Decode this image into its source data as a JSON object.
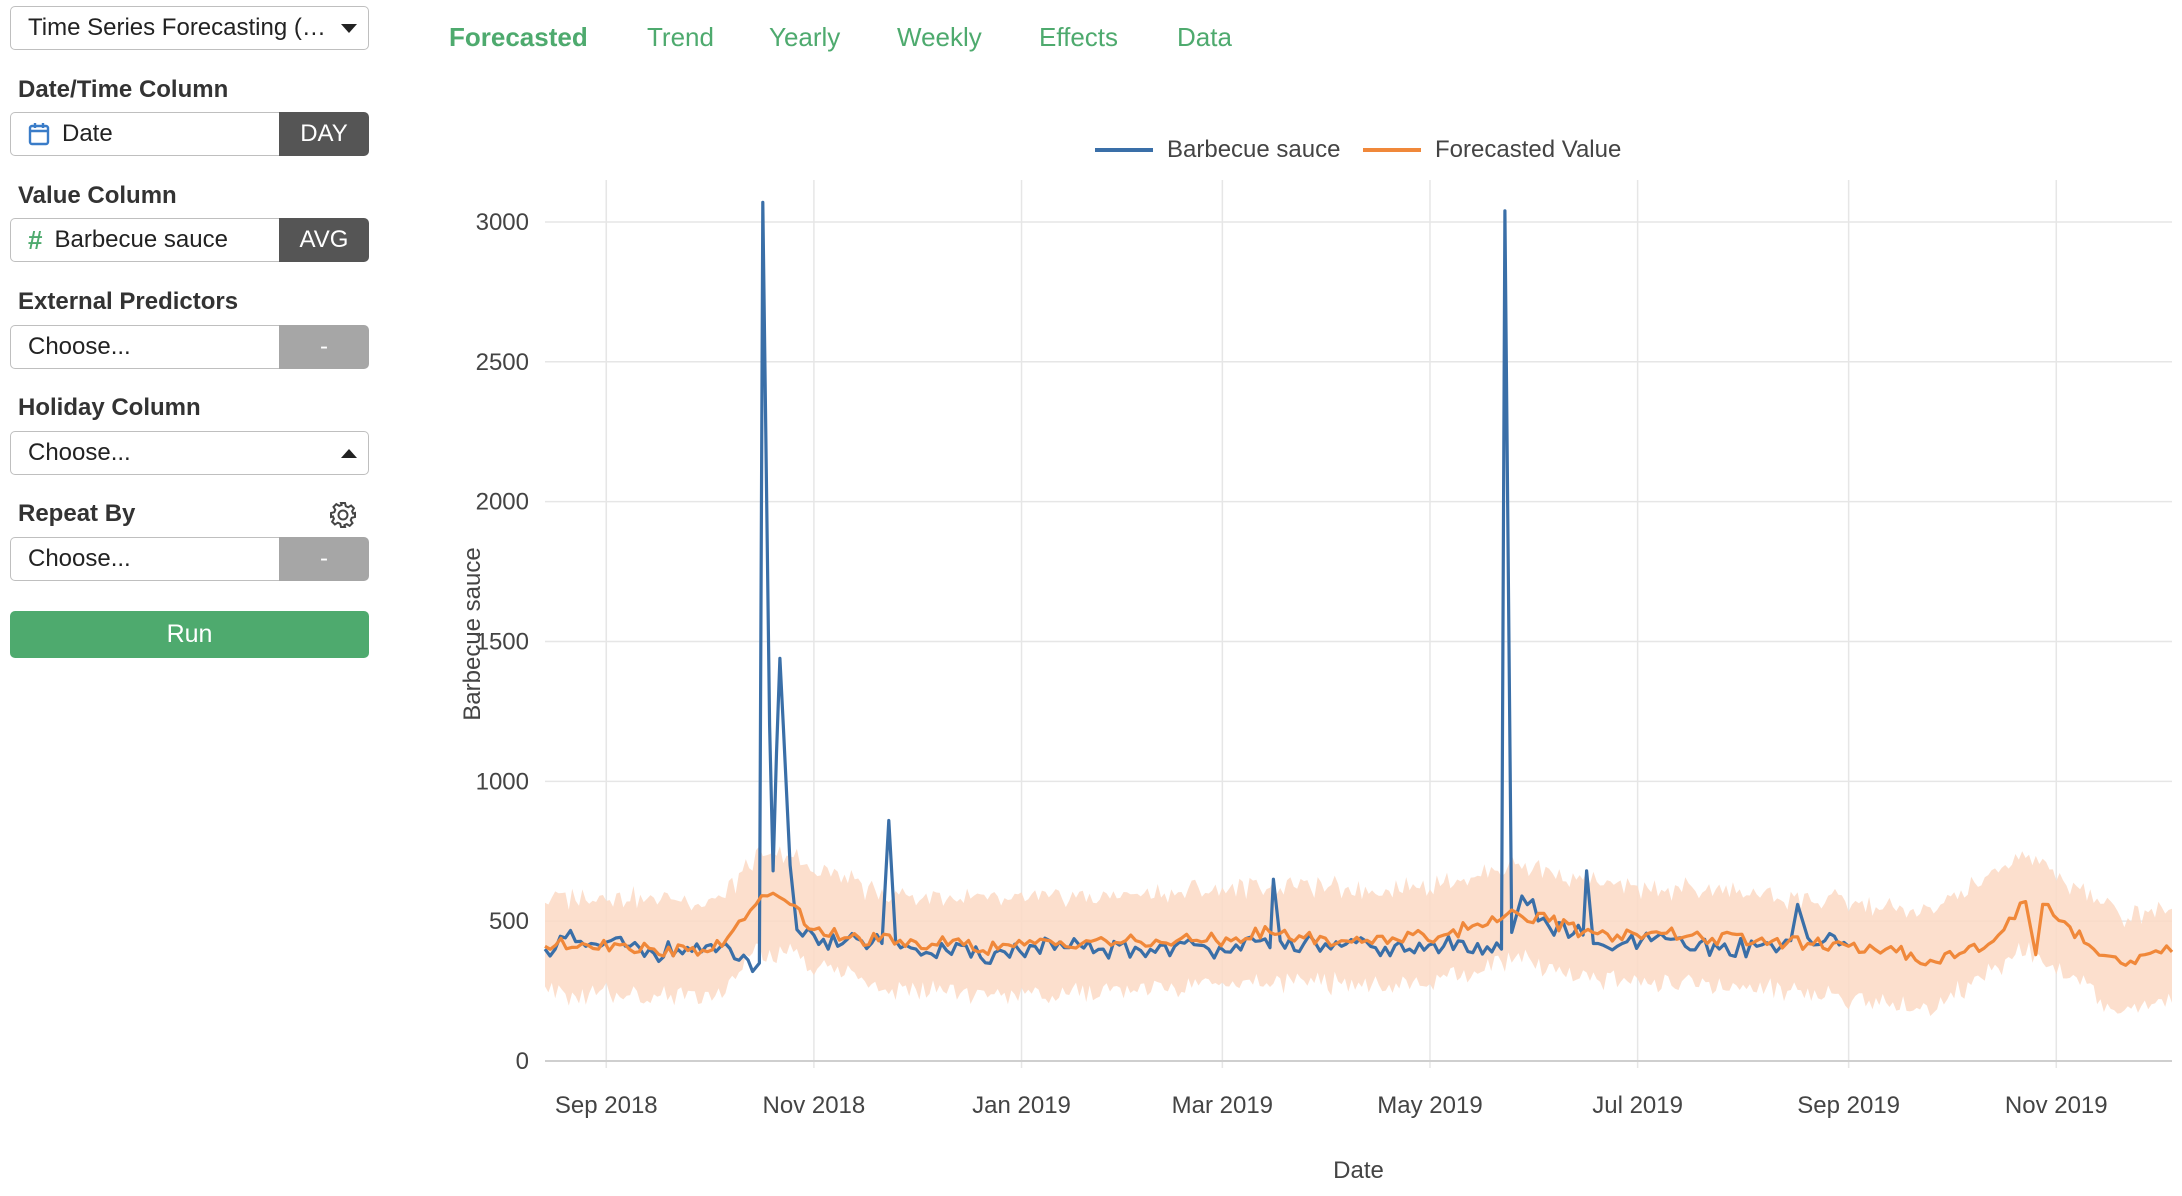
{
  "sidebar": {
    "model_select": "Time Series Forecasting (P…",
    "date_column": {
      "label": "Date/Time Column",
      "value": "Date",
      "unit": "DAY",
      "icon": "calendar-icon"
    },
    "value_column": {
      "label": "Value Column",
      "value": "Barbecue sauce",
      "agg": "AVG",
      "icon": "hash-icon"
    },
    "external_predictors": {
      "label": "External Predictors",
      "value": "Choose...",
      "btn": "-"
    },
    "holiday_column": {
      "label": "Holiday Column",
      "value": "Choose..."
    },
    "repeat_by": {
      "label": "Repeat By",
      "value": "Choose...",
      "btn": "-",
      "icon": "gear-icon"
    },
    "run_label": "Run"
  },
  "tabs": [
    {
      "label": "Forecasted",
      "active": true
    },
    {
      "label": "Trend"
    },
    {
      "label": "Yearly"
    },
    {
      "label": "Weekly"
    },
    {
      "label": "Effects"
    },
    {
      "label": "Data"
    }
  ],
  "colors": {
    "accent": "#4eaa6e",
    "actual": "#3a6fa8",
    "forecast": "#f0883a",
    "band": "#fbd9c4"
  },
  "chart_data": {
    "type": "line",
    "xlabel": "Date",
    "ylabel": "Barbecue sauce",
    "ylim": [
      -25,
      3150
    ],
    "xlim": [
      "2018-08-14",
      "2019-12-05"
    ],
    "yticks": [
      0,
      500,
      1000,
      1500,
      2000,
      2500,
      3000
    ],
    "xticks": [
      {
        "date": "2018-09-01",
        "label": "Sep 2018"
      },
      {
        "date": "2018-11-01",
        "label": "Nov 2018"
      },
      {
        "date": "2019-01-01",
        "label": "Jan 2019"
      },
      {
        "date": "2019-03-01",
        "label": "Mar 2019"
      },
      {
        "date": "2019-05-01",
        "label": "May 2019"
      },
      {
        "date": "2019-07-01",
        "label": "Jul 2019"
      },
      {
        "date": "2019-09-01",
        "label": "Sep 2019"
      },
      {
        "date": "2019-11-01",
        "label": "Nov 2019"
      }
    ],
    "legend": "top-center",
    "grid": true,
    "series": [
      {
        "name": "Barbecue sauce",
        "points": [
          [
            "2018-08-14",
            400
          ],
          [
            "2018-08-20",
            440
          ],
          [
            "2018-08-26",
            410
          ],
          [
            "2018-09-01",
            425
          ],
          [
            "2018-09-08",
            410
          ],
          [
            "2018-09-15",
            385
          ],
          [
            "2018-09-22",
            400
          ],
          [
            "2018-09-29",
            390
          ],
          [
            "2018-10-06",
            420
          ],
          [
            "2018-10-10",
            360
          ],
          [
            "2018-10-14",
            320
          ],
          [
            "2018-10-16",
            350
          ],
          [
            "2018-10-17",
            3070
          ],
          [
            "2018-10-19",
            1200
          ],
          [
            "2018-10-20",
            680
          ],
          [
            "2018-10-21",
            1100
          ],
          [
            "2018-10-22",
            1440
          ],
          [
            "2018-10-23",
            1200
          ],
          [
            "2018-10-25",
            700
          ],
          [
            "2018-10-27",
            470
          ],
          [
            "2018-11-01",
            450
          ],
          [
            "2018-11-08",
            410
          ],
          [
            "2018-11-15",
            430
          ],
          [
            "2018-11-21",
            420
          ],
          [
            "2018-11-23",
            860
          ],
          [
            "2018-11-25",
            430
          ],
          [
            "2018-12-01",
            400
          ],
          [
            "2018-12-10",
            395
          ],
          [
            "2018-12-20",
            370
          ],
          [
            "2018-12-27",
            390
          ],
          [
            "2019-01-05",
            410
          ],
          [
            "2019-01-15",
            405
          ],
          [
            "2019-01-25",
            400
          ],
          [
            "2019-02-05",
            395
          ],
          [
            "2019-02-15",
            410
          ],
          [
            "2019-02-25",
            400
          ],
          [
            "2019-03-05",
            415
          ],
          [
            "2019-03-15",
            405
          ],
          [
            "2019-03-16",
            650
          ],
          [
            "2019-03-18",
            430
          ],
          [
            "2019-03-25",
            420
          ],
          [
            "2019-04-05",
            410
          ],
          [
            "2019-04-15",
            405
          ],
          [
            "2019-04-25",
            400
          ],
          [
            "2019-05-05",
            410
          ],
          [
            "2019-05-15",
            420
          ],
          [
            "2019-05-22",
            400
          ],
          [
            "2019-05-23",
            3040
          ],
          [
            "2019-05-25",
            460
          ],
          [
            "2019-05-28",
            590
          ],
          [
            "2019-06-05",
            480
          ],
          [
            "2019-06-15",
            450
          ],
          [
            "2019-06-16",
            680
          ],
          [
            "2019-06-18",
            420
          ],
          [
            "2019-06-25",
            410
          ],
          [
            "2019-07-05",
            430
          ],
          [
            "2019-07-15",
            410
          ],
          [
            "2019-07-25",
            400
          ],
          [
            "2019-08-05",
            410
          ],
          [
            "2019-08-15",
            430
          ],
          [
            "2019-08-17",
            560
          ],
          [
            "2019-08-20",
            440
          ],
          [
            "2019-08-25",
            430
          ],
          [
            "2019-09-01",
            410
          ]
        ]
      },
      {
        "name": "Forecasted Value",
        "points": [
          [
            "2018-08-14",
            410
          ],
          [
            "2018-08-25",
            420
          ],
          [
            "2018-09-05",
            415
          ],
          [
            "2018-09-15",
            400
          ],
          [
            "2018-09-25",
            395
          ],
          [
            "2018-10-05",
            410
          ],
          [
            "2018-10-10",
            500
          ],
          [
            "2018-10-15",
            560
          ],
          [
            "2018-10-20",
            600
          ],
          [
            "2018-10-25",
            560
          ],
          [
            "2018-11-01",
            470
          ],
          [
            "2018-11-10",
            440
          ],
          [
            "2018-11-20",
            430
          ],
          [
            "2018-12-01",
            425
          ],
          [
            "2018-12-15",
            415
          ],
          [
            "2018-12-25",
            400
          ],
          [
            "2019-01-05",
            420
          ],
          [
            "2019-01-20",
            430
          ],
          [
            "2019-02-05",
            425
          ],
          [
            "2019-02-20",
            430
          ],
          [
            "2019-03-05",
            440
          ],
          [
            "2019-03-15",
            460
          ],
          [
            "2019-03-25",
            440
          ],
          [
            "2019-04-05",
            430
          ],
          [
            "2019-04-20",
            440
          ],
          [
            "2019-05-05",
            450
          ],
          [
            "2019-05-15",
            490
          ],
          [
            "2019-05-25",
            540
          ],
          [
            "2019-06-05",
            500
          ],
          [
            "2019-06-15",
            460
          ],
          [
            "2019-06-25",
            450
          ],
          [
            "2019-07-05",
            460
          ],
          [
            "2019-07-20",
            440
          ],
          [
            "2019-08-05",
            430
          ],
          [
            "2019-08-20",
            420
          ],
          [
            "2019-09-01",
            410
          ],
          [
            "2019-09-15",
            390
          ],
          [
            "2019-09-25",
            360
          ],
          [
            "2019-10-05",
            390
          ],
          [
            "2019-10-15",
            450
          ],
          [
            "2019-10-23",
            570
          ],
          [
            "2019-10-26",
            380
          ],
          [
            "2019-10-28",
            560
          ],
          [
            "2019-11-05",
            480
          ],
          [
            "2019-11-12",
            400
          ],
          [
            "2019-11-20",
            350
          ],
          [
            "2019-11-27",
            380
          ],
          [
            "2019-12-05",
            390
          ]
        ]
      }
    ],
    "forecast_interval": {
      "name": "Forecasted Value",
      "half_width": 170,
      "points": [
        [
          "2018-08-14",
          410
        ],
        [
          "2018-09-05",
          415
        ],
        [
          "2018-10-05",
          410
        ],
        [
          "2018-10-15",
          560
        ],
        [
          "2018-10-25",
          560
        ],
        [
          "2018-11-20",
          430
        ],
        [
          "2018-12-25",
          400
        ],
        [
          "2019-02-05",
          425
        ],
        [
          "2019-03-15",
          460
        ],
        [
          "2019-04-20",
          440
        ],
        [
          "2019-05-15",
          490
        ],
        [
          "2019-05-25",
          540
        ],
        [
          "2019-06-25",
          450
        ],
        [
          "2019-08-05",
          430
        ],
        [
          "2019-09-25",
          360
        ],
        [
          "2019-10-23",
          570
        ],
        [
          "2019-11-20",
          350
        ],
        [
          "2019-12-05",
          390
        ]
      ]
    }
  }
}
